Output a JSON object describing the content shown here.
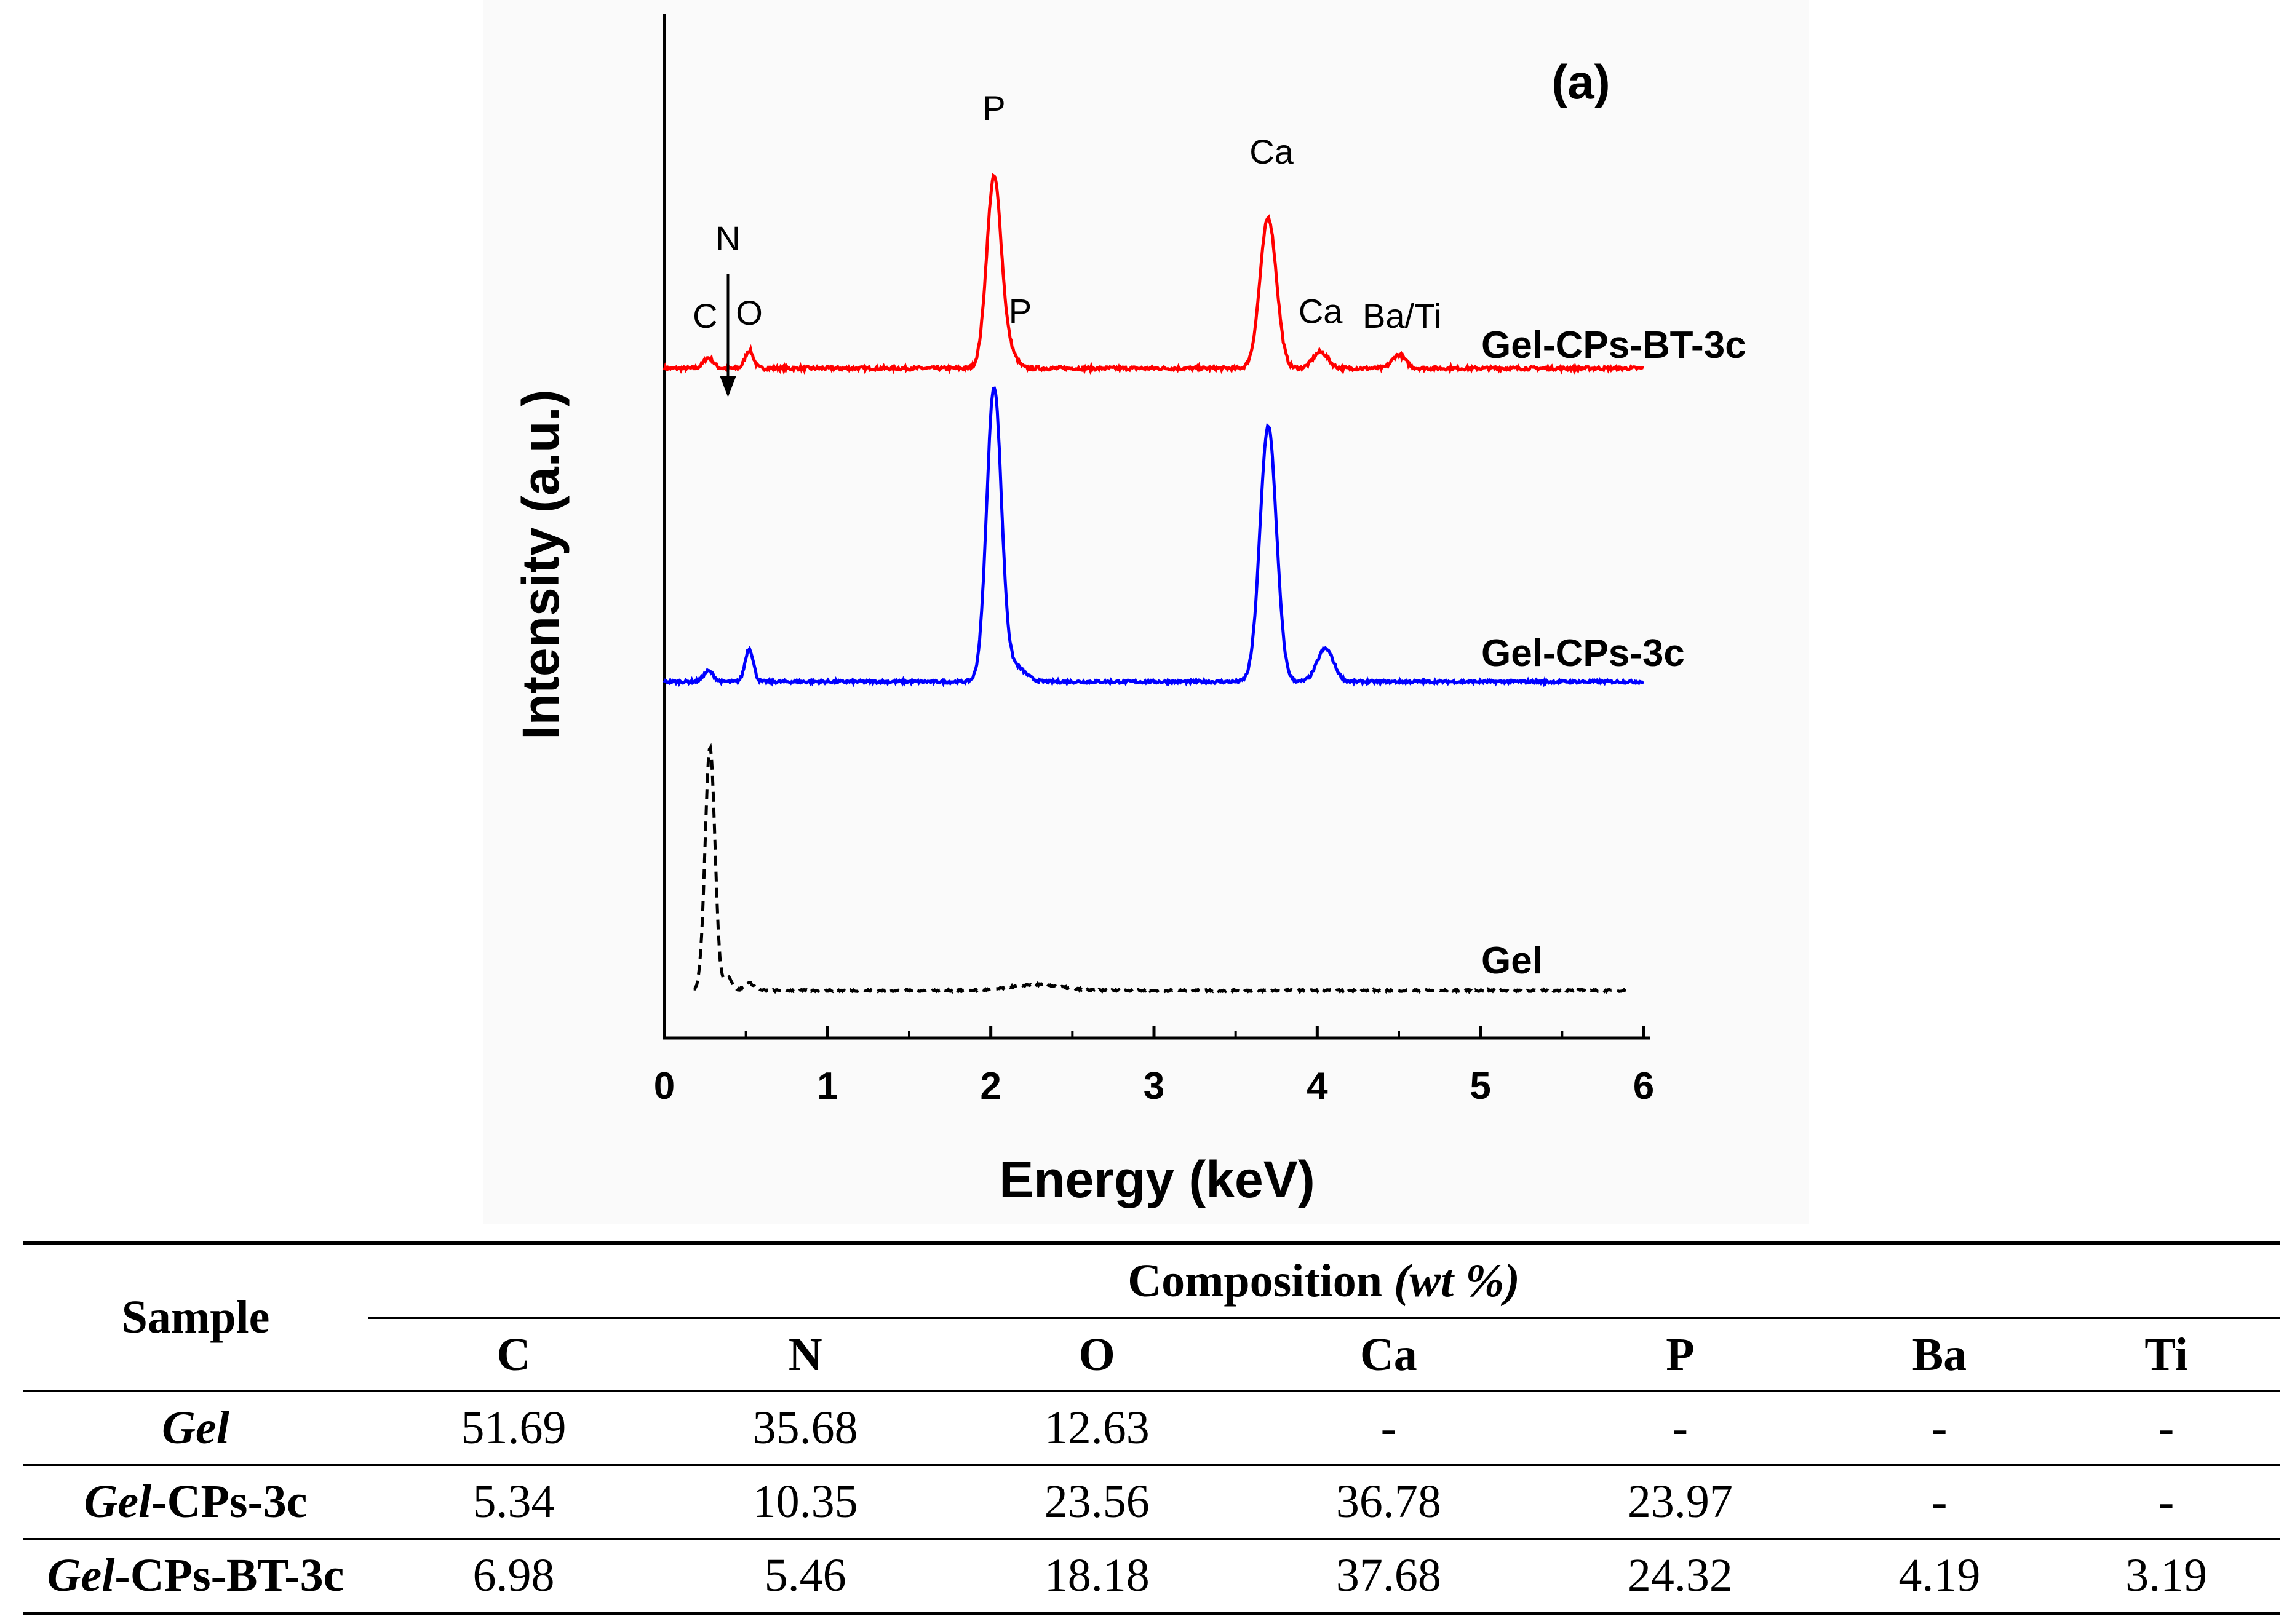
{
  "chart_data": {
    "type": "line",
    "panel_label": "(a)",
    "xlabel": "Energy (keV)",
    "ylabel": "Intensity (a.u.)",
    "xlim": [
      0,
      6
    ],
    "xticks": [
      "0",
      "1",
      "2",
      "3",
      "4",
      "5",
      "6"
    ],
    "series": [
      {
        "name": "Gel-CPs-BT-3c",
        "color": "#ff0000",
        "style": "solid",
        "baseline": 0.2,
        "noise": 0.012,
        "peaks": [
          {
            "x": 0.27,
            "h": 0.07,
            "w": 0.03
          },
          {
            "x": 0.52,
            "h": 0.12,
            "w": 0.025
          },
          {
            "x": 2.02,
            "h": 1.27,
            "w": 0.045
          },
          {
            "x": 2.12,
            "h": 0.09,
            "w": 0.04
          },
          {
            "x": 3.7,
            "h": 1.0,
            "w": 0.05
          },
          {
            "x": 4.02,
            "h": 0.11,
            "w": 0.045
          },
          {
            "x": 4.5,
            "h": 0.09,
            "w": 0.04
          }
        ],
        "labels": [
          {
            "text": "C",
            "x": 0.25,
            "y": 0.47
          },
          {
            "text": "O",
            "x": 0.52,
            "y": 0.49
          },
          {
            "text": "P",
            "x": 2.02,
            "y": 1.85
          },
          {
            "text": "P",
            "x": 2.18,
            "y": 0.5
          },
          {
            "text": "Ca",
            "x": 3.72,
            "y": 1.56
          },
          {
            "text": "Ca",
            "x": 4.02,
            "y": 0.5
          },
          {
            "text": "Ba/Ti",
            "x": 4.52,
            "y": 0.47
          }
        ]
      },
      {
        "name": "Gel-CPs-3c",
        "color": "#0000ff",
        "style": "solid",
        "baseline": -1.88,
        "noise": 0.01,
        "peaks": [
          {
            "x": 0.27,
            "h": 0.07,
            "w": 0.03
          },
          {
            "x": 0.52,
            "h": 0.22,
            "w": 0.025
          },
          {
            "x": 2.02,
            "h": 1.95,
            "w": 0.045
          },
          {
            "x": 2.15,
            "h": 0.1,
            "w": 0.06
          },
          {
            "x": 3.7,
            "h": 1.7,
            "w": 0.05
          },
          {
            "x": 4.05,
            "h": 0.22,
            "w": 0.05
          }
        ],
        "labels": []
      },
      {
        "name": "Gel",
        "color": "#000000",
        "style": "dashed",
        "baseline": -3.93,
        "noise": 0.006,
        "peaks": [
          {
            "x": 0.28,
            "h": 1.62,
            "w": 0.03
          },
          {
            "x": 0.39,
            "h": 0.09,
            "w": 0.025
          },
          {
            "x": 0.52,
            "h": 0.05,
            "w": 0.03
          },
          {
            "x": 2.28,
            "h": 0.04,
            "w": 0.15
          }
        ],
        "labels": []
      }
    ],
    "arrow_label": "N",
    "arrow_x": 0.39
  },
  "table": {
    "sample_header": "Sample",
    "composition_header": "Composition (wt %)",
    "elements": [
      "C",
      "N",
      "O",
      "Ca",
      "P",
      "Ba",
      "Ti"
    ],
    "rows": [
      {
        "italic": "Gel",
        "rest": "",
        "values": [
          "51.69",
          "35.68",
          "12.63",
          "-",
          "-",
          "-",
          "-"
        ]
      },
      {
        "italic": "Gel",
        "rest": "-CPs-3c",
        "values": [
          "5.34",
          "10.35",
          "23.56",
          "36.78",
          "23.97",
          "-",
          "-"
        ]
      },
      {
        "italic": "Gel",
        "rest": "-CPs-BT-3c",
        "values": [
          "6.98",
          "5.46",
          "18.18",
          "37.68",
          "24.32",
          "4.19",
          "3.19"
        ]
      }
    ]
  }
}
